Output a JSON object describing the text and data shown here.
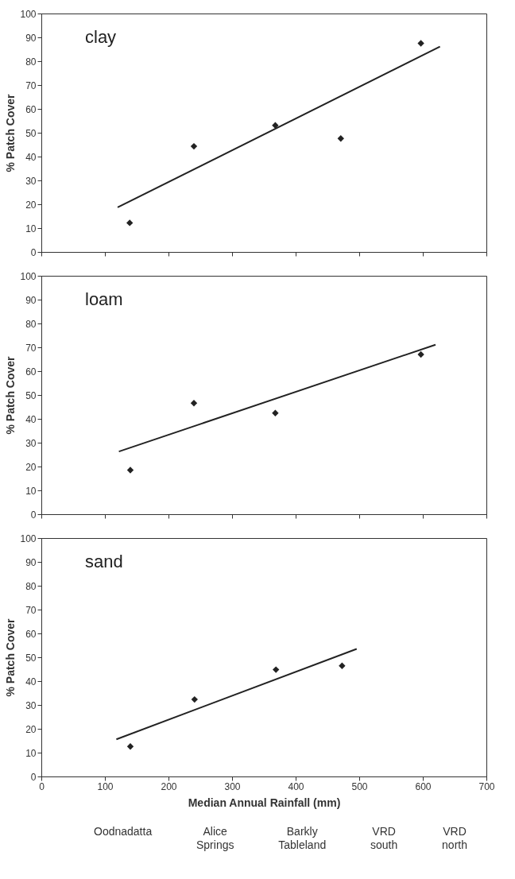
{
  "chart_data": [
    {
      "type": "scatter",
      "title": "clay",
      "ylabel": "% Patch Cover",
      "xlim": [
        0,
        700
      ],
      "ylim": [
        0,
        100
      ],
      "xticks": [
        0,
        100,
        200,
        300,
        400,
        500,
        600,
        700
      ],
      "yticks": [
        0,
        10,
        20,
        30,
        40,
        50,
        60,
        70,
        80,
        90,
        100
      ],
      "tick_labels": "y",
      "series": [
        {
          "type": "scatter",
          "marker": "diamond",
          "color": "#222222",
          "x": [
            139,
            240,
            368,
            471,
            597
          ],
          "values": [
            12.2,
            44.3,
            53.1,
            47.6,
            87.5
          ]
        },
        {
          "type": "line",
          "marker": "none",
          "color": "#222222",
          "x": [
            120,
            627
          ],
          "values": [
            18.7,
            86.1
          ]
        }
      ]
    },
    {
      "type": "scatter",
      "title": "loam",
      "ylabel": "% Patch Cover",
      "xlim": [
        0,
        700
      ],
      "ylim": [
        0,
        100
      ],
      "xticks": [
        0,
        100,
        200,
        300,
        400,
        500,
        600,
        700
      ],
      "yticks": [
        0,
        10,
        20,
        30,
        40,
        50,
        60,
        70,
        80,
        90,
        100
      ],
      "tick_labels": "y",
      "series": [
        {
          "type": "scatter",
          "marker": "diamond",
          "color": "#222222",
          "x": [
            140,
            240,
            368,
            597
          ],
          "values": [
            18.5,
            46.6,
            42.4,
            67.0
          ]
        },
        {
          "type": "line",
          "marker": "none",
          "color": "#222222",
          "x": [
            122,
            620
          ],
          "values": [
            26.3,
            71.1
          ]
        }
      ]
    },
    {
      "type": "scatter",
      "title": "sand",
      "xlabel": "Median Annual Rainfall (mm)",
      "ylabel": "% Patch Cover",
      "xlim": [
        0,
        700
      ],
      "ylim": [
        0,
        100
      ],
      "xticks": [
        0,
        100,
        200,
        300,
        400,
        500,
        600,
        700
      ],
      "yticks": [
        0,
        10,
        20,
        30,
        40,
        50,
        60,
        70,
        80,
        90,
        100
      ],
      "series": [
        {
          "type": "scatter",
          "marker": "diamond",
          "color": "#222222",
          "x": [
            140,
            241,
            369,
            473
          ],
          "values": [
            12.6,
            32.3,
            44.8,
            46.4
          ]
        },
        {
          "type": "line",
          "marker": "none",
          "color": "#222222",
          "x": [
            118,
            496
          ],
          "values": [
            15.6,
            53.5
          ]
        }
      ],
      "annotations": [
        "Oodnadatta",
        "Alice Springs",
        "Barkly Tableland",
        "VRD south",
        "VRD north"
      ]
    }
  ]
}
